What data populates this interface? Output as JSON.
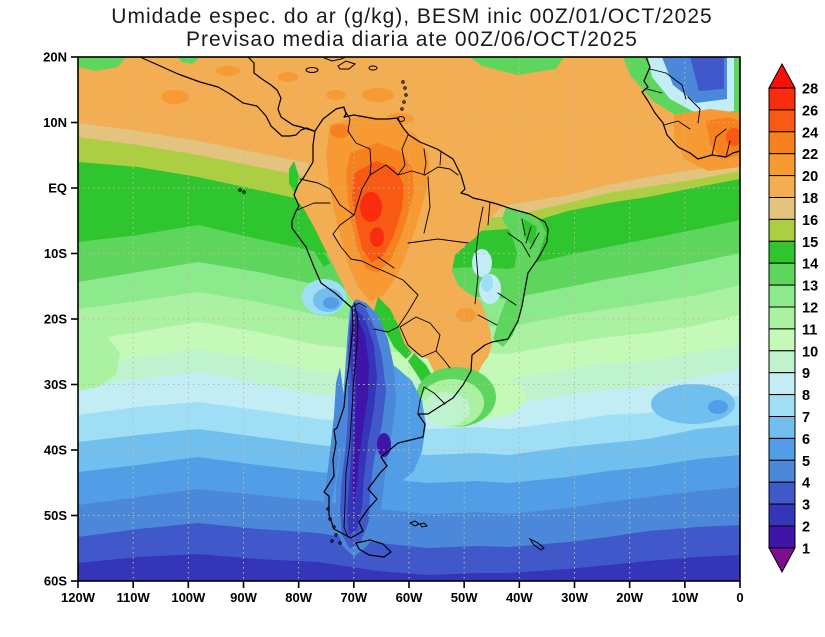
{
  "title": {
    "line1": "Umidade espec. do ar (g/kg), BESM inic 00Z/01/OCT/2025",
    "line2": "Previsao media diaria ate 00Z/06/OCT/2025"
  },
  "axes": {
    "lat_ticks": [
      "20N",
      "10N",
      "EQ",
      "10S",
      "20S",
      "30S",
      "40S",
      "50S",
      "60S"
    ],
    "lon_ticks": [
      "120W",
      "110W",
      "100W",
      "90W",
      "80W",
      "70W",
      "60W",
      "50W",
      "40W",
      "30W",
      "20W",
      "10W",
      "0"
    ]
  },
  "colorbar": {
    "labels": [
      "28",
      "26",
      "24",
      "22",
      "20",
      "18",
      "16",
      "15",
      "14",
      "13",
      "12",
      "11",
      "10",
      "9",
      "8",
      "7",
      "6",
      "5",
      "4",
      "3",
      "2",
      "1"
    ],
    "colors": [
      "#f90f06",
      "#f92d0e",
      "#f85a16",
      "#f8811f",
      "#f79a33",
      "#f3ad52",
      "#e3c47e",
      "#abce42",
      "#2fc52f",
      "#5ed65e",
      "#8ce98c",
      "#aaf2a2",
      "#c4f9b8",
      "#bef3cd",
      "#c2edf5",
      "#9fdff5",
      "#70bfee",
      "#519ee6",
      "#4b88da",
      "#4058c9",
      "#3535b9",
      "#3f15a9",
      "#7c0e8f"
    ]
  },
  "palette": {
    "k0": "#7c0e8f",
    "k1": "#3f15a9",
    "k2": "#3535b9",
    "k3": "#4058c9",
    "k4": "#4b88da",
    "k5": "#519ee6",
    "k6": "#70bfee",
    "k7": "#9fdff5",
    "k8": "#c2edf5",
    "k9": "#bef3cd",
    "k10": "#c4f9b8",
    "k11": "#aaf2a2",
    "k12": "#8ce98c",
    "k13": "#5ed65e",
    "k14": "#2fc52f",
    "k15": "#abce42",
    "k16": "#e3c47e",
    "k18": "#f3ad52",
    "k20": "#f79a33",
    "k22": "#f8811f",
    "k24": "#f85a16",
    "k26": "#f92d0e",
    "k28": "#f90f06"
  },
  "grid_color": "#c7b8a2",
  "frame_color": "#000000",
  "chart_data": {
    "type": "heatmap",
    "title": "Umidade espec. do ar (g/kg), BESM inic 00Z/01/OCT/2025 — Previsao media diaria ate 00Z/06/OCT/2025",
    "units": "g/kg",
    "projection": "lat/lon map, South America and adjacent oceans",
    "lon_range": [
      -120,
      0
    ],
    "lat_range": [
      -60,
      20
    ],
    "grid": true,
    "legend_position": "right colorbar",
    "contour_levels": [
      1,
      2,
      3,
      4,
      5,
      6,
      7,
      8,
      9,
      10,
      11,
      12,
      13,
      14,
      15,
      16,
      18,
      20,
      22,
      24,
      26,
      28
    ],
    "x_lons": [
      -120,
      -110,
      -100,
      -90,
      -80,
      -70,
      -60,
      -50,
      -40,
      -30,
      -20,
      -10,
      0
    ],
    "y_lats": [
      20,
      10,
      0,
      -10,
      -20,
      -30,
      -40,
      -50,
      -60
    ],
    "values_grid_g_per_kg": [
      [
        18,
        18,
        18,
        19,
        19,
        18,
        18,
        18,
        16,
        15,
        14,
        4,
        6
      ],
      [
        19,
        19,
        19,
        20,
        20,
        21,
        19,
        19,
        18,
        18,
        19,
        21,
        22
      ],
      [
        15,
        16,
        15,
        16,
        19,
        23,
        21,
        19,
        17,
        15,
        14,
        14,
        15
      ],
      [
        13,
        13,
        13,
        12,
        13,
        24,
        17,
        11,
        10,
        13,
        13,
        12,
        12
      ],
      [
        11,
        11,
        10,
        10,
        10,
        2,
        19,
        14,
        11,
        11,
        11,
        10,
        10
      ],
      [
        9,
        9,
        9,
        8,
        8,
        2,
        7,
        11,
        10,
        9,
        8,
        7,
        7
      ],
      [
        7,
        7,
        7,
        6,
        6,
        3,
        5,
        6,
        6,
        6,
        6,
        6,
        6
      ],
      [
        5,
        5,
        5,
        5,
        5,
        3,
        4,
        5,
        5,
        5,
        5,
        5,
        5
      ],
      [
        4,
        4,
        4,
        4,
        4,
        3,
        3,
        3,
        4,
        4,
        3,
        3,
        3
      ]
    ],
    "notable_features": [
      "Moist maximum (22-26 g/kg) over western Amazon / Colombia",
      "Very dry band (1-3 g/kg) along the Andes from ~15S into Patagonia",
      "Dry pocket (3-5 g/kg) over Sahara at top-right corner",
      "Zonal moisture decrease toward 60S (down to 2-3 g/kg)"
    ]
  }
}
